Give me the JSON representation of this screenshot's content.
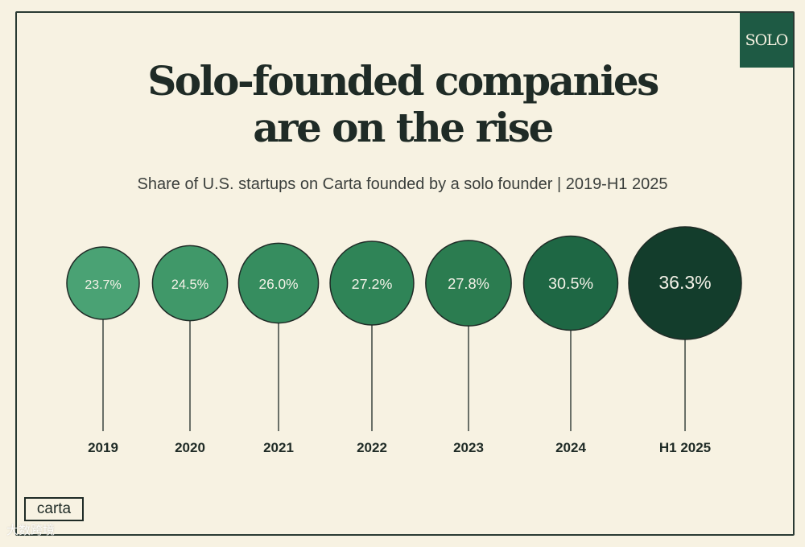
{
  "badge": "SOLO",
  "logo": "carta",
  "watermark": "大数跨境",
  "colors": {
    "background": "#f7f2e2",
    "line": "#2a3a33",
    "circle_fill": [
      "#4aa274",
      "#409869",
      "#368d5f",
      "#2f8457",
      "#2b7c50",
      "#1e6744",
      "#133d2c"
    ]
  },
  "chart_data": {
    "type": "bubble",
    "title": "Solo-founded companies are on the rise",
    "title_lines": [
      "Solo-founded companies",
      "are on the rise"
    ],
    "subtitle": "Share of U.S. startups on Carta founded by a solo founder | 2019-H1 2025",
    "categories": [
      "2019",
      "2020",
      "2021",
      "2022",
      "2023",
      "2024",
      "H1 2025"
    ],
    "values": [
      23.7,
      24.5,
      26.0,
      27.2,
      27.8,
      30.5,
      36.3
    ],
    "labels": [
      "23.7%",
      "24.5%",
      "26.0%",
      "27.2%",
      "27.8%",
      "30.5%",
      "36.3%"
    ],
    "unit": "%"
  }
}
